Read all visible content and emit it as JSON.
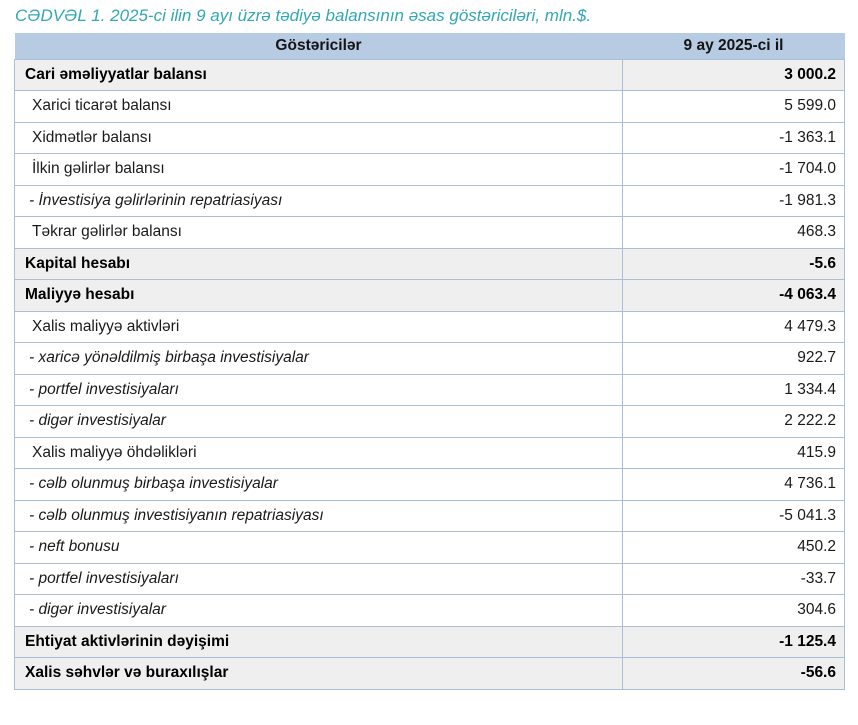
{
  "title": "CƏDVƏL 1. 2025-ci ilin 9 ayı üzrə tədiyə balansının əsas göstəriciləri, mln.$.",
  "table": {
    "columns": [
      "Göstəricilər",
      "9 ay 2025-ci il"
    ],
    "rows": [
      {
        "label": "Cari əməliyyatlar balansı",
        "value": "3 000.2",
        "style": "section"
      },
      {
        "label": "Xarici ticarət balansı",
        "value": "5 599.0",
        "style": "item"
      },
      {
        "label": "Xidmətlər balansı",
        "value": "-1 363.1",
        "style": "item"
      },
      {
        "label": "İlkin gəlirlər balansı",
        "value": "-1 704.0",
        "style": "item"
      },
      {
        "label": "- İnvestisiya gəlirlərinin repatriasiyası",
        "value": "-1 981.3",
        "style": "subitem"
      },
      {
        "label": "Təkrar gəlirlər balansı",
        "value": "468.3",
        "style": "item"
      },
      {
        "label": "Kapital hesabı",
        "value": "-5.6",
        "style": "section"
      },
      {
        "label": "Maliyyə hesabı",
        "value": "-4 063.4",
        "style": "section"
      },
      {
        "label": "Xalis maliyyə aktivləri",
        "value": "4 479.3",
        "style": "item"
      },
      {
        "label": "- xaricə yönəldilmiş birbaşa investisiyalar",
        "value": "922.7",
        "style": "subitem"
      },
      {
        "label": "- portfel investisiyaları",
        "value": "1 334.4",
        "style": "subitem"
      },
      {
        "label": "- digər investisiyalar",
        "value": "2 222.2",
        "style": "subitem"
      },
      {
        "label": "Xalis maliyyə öhdəlikləri",
        "value": "415.9",
        "style": "item"
      },
      {
        "label": "- cəlb olunmuş birbaşa investisiyalar",
        "value": "4 736.1",
        "style": "subitem"
      },
      {
        "label": "- cəlb olunmuş investisiyanın repatriasiyası",
        "value": "-5 041.3",
        "style": "subitem"
      },
      {
        "label": "- neft bonusu",
        "value": "450.2",
        "style": "subitem"
      },
      {
        "label": "- portfel investisiyaları",
        "value": "-33.7",
        "style": "subitem"
      },
      {
        "label": "- digər investisiyalar",
        "value": "304.6",
        "style": "subitem"
      },
      {
        "label": "Ehtiyat aktivlərinin dəyişimi",
        "value": "-1 125.4",
        "style": "section"
      },
      {
        "label": "Xalis səhvlər və buraxılışlar",
        "value": "-56.6",
        "style": "section"
      }
    ]
  },
  "colors": {
    "title_text": "#31A7B8",
    "header_bg": "#B7CBE2",
    "section_row_bg": "#EFEFEF",
    "border": "#A9BFD7",
    "text": "#1A1A1A"
  }
}
